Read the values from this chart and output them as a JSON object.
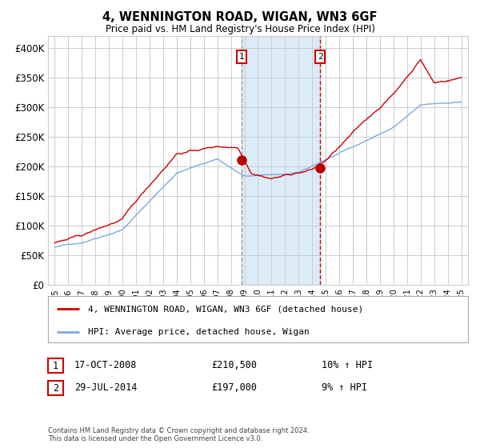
{
  "title": "4, WENNINGTON ROAD, WIGAN, WN3 6GF",
  "subtitle": "Price paid vs. HM Land Registry's House Price Index (HPI)",
  "legend_line1": "4, WENNINGTON ROAD, WIGAN, WN3 6GF (detached house)",
  "legend_line2": "HPI: Average price, detached house, Wigan",
  "table_row1": [
    "1",
    "17-OCT-2008",
    "£210,500",
    "10% ↑ HPI"
  ],
  "table_row2": [
    "2",
    "29-JUL-2014",
    "£197,000",
    "9% ↑ HPI"
  ],
  "footnote": "Contains HM Land Registry data © Crown copyright and database right 2024.\nThis data is licensed under the Open Government Licence v3.0.",
  "hpi_line_color": "#7aaadd",
  "price_line_color": "#cc0000",
  "dot_color": "#bb0000",
  "background_color": "#ffffff",
  "grid_color": "#cccccc",
  "shade_color": "#d6e8f7",
  "vline1_color": "#999999",
  "vline2_color": "#cc0000",
  "sale1_x": 2008.8,
  "sale1_y": 210500,
  "sale2_x": 2014.58,
  "sale2_y": 197000,
  "shade_x1": 2008.8,
  "shade_x2": 2014.58,
  "ylim": [
    0,
    420000
  ],
  "xlim": [
    1994.5,
    2025.5
  ],
  "yticks": [
    0,
    50000,
    100000,
    150000,
    200000,
    250000,
    300000,
    350000,
    400000
  ],
  "ytick_labels": [
    "£0",
    "£50K",
    "£100K",
    "£150K",
    "£200K",
    "£250K",
    "£300K",
    "£350K",
    "£400K"
  ],
  "xtick_years": [
    1995,
    1996,
    1997,
    1998,
    1999,
    2000,
    2001,
    2002,
    2003,
    2004,
    2005,
    2006,
    2007,
    2008,
    2009,
    2010,
    2011,
    2012,
    2013,
    2014,
    2015,
    2016,
    2017,
    2018,
    2019,
    2020,
    2021,
    2022,
    2023,
    2024,
    2025
  ]
}
